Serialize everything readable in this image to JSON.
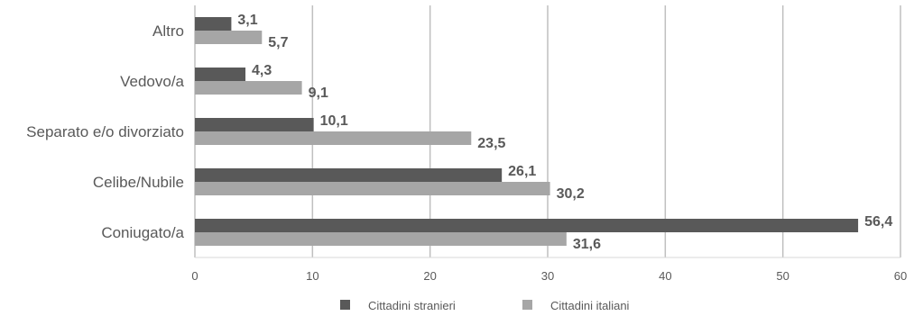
{
  "chart_data": {
    "type": "bar",
    "orientation": "horizontal",
    "categories": [
      "Altro",
      "Vedovo/a",
      "Separato e/o divorziato",
      "Celibe/Nubile",
      "Coniugato/a"
    ],
    "series": [
      {
        "name": "Cittadini stranieri",
        "values": [
          3.1,
          4.3,
          10.1,
          26.1,
          56.4
        ],
        "labels": [
          "3,1",
          "4,3",
          "10,1",
          "26,1",
          "56,4"
        ],
        "color": "#595959"
      },
      {
        "name": "Cittadini italiani",
        "values": [
          5.7,
          9.1,
          23.5,
          30.2,
          31.6
        ],
        "labels": [
          "5,7",
          "9,1",
          "23,5",
          "30,2",
          "31,6"
        ],
        "color": "#a6a6a6"
      }
    ],
    "xlim": [
      0,
      60
    ],
    "xticks": [
      0,
      10,
      20,
      30,
      40,
      50,
      60
    ],
    "grid": true,
    "legend": "bottom-center",
    "title": "",
    "xlabel": "",
    "ylabel": ""
  }
}
